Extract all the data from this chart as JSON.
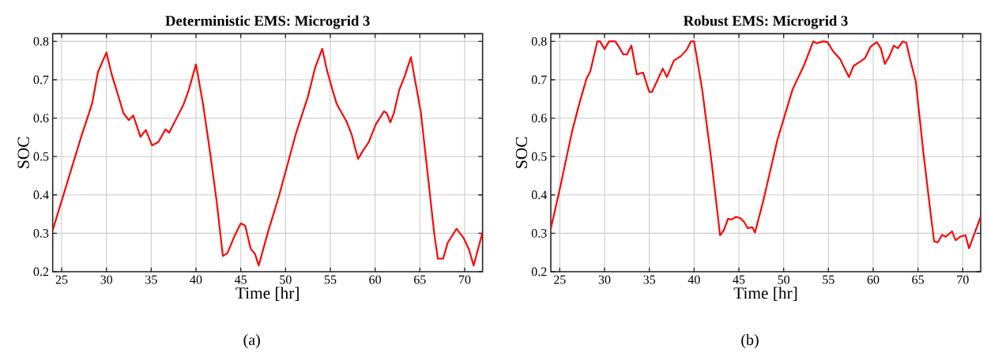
{
  "chart_data": [
    {
      "type": "line",
      "title": "Deterministic EMS: Microgrid 3",
      "xlabel": "Time [hr]",
      "ylabel": "SOC",
      "color": "#ff0000",
      "xlim": [
        24,
        72
      ],
      "ylim": [
        0.2,
        0.82
      ],
      "xticks": [
        25,
        30,
        35,
        40,
        45,
        50,
        55,
        60,
        65,
        70
      ],
      "yticks": [
        0.2,
        0.3,
        0.4,
        0.5,
        0.6,
        0.7,
        0.8
      ],
      "grid": true,
      "annotations": [
        "(a)"
      ],
      "x": [
        24,
        27.15,
        28.4,
        29.05,
        30,
        30.6,
        31.3,
        31.9,
        32.5,
        33.0,
        33.8,
        34.4,
        35.1,
        35.8,
        36.6,
        37.0,
        37.9,
        38.6,
        39.2,
        40.0,
        40.8,
        41.6,
        42.3,
        43.0,
        43.5,
        44.3,
        45.0,
        45.5,
        46.1,
        46.6,
        47.0,
        48.0,
        49.3,
        51.2,
        52.5,
        53.3,
        54.1,
        54.6,
        55.2,
        55.7,
        56.0,
        56.8,
        57.4,
        57.7,
        58.1,
        58.7,
        59.3,
        60.1,
        60.6,
        61.0,
        61.3,
        61.7,
        62.1,
        62.7,
        63.3,
        64.0,
        64.6,
        65.1,
        65.8,
        66.6,
        67.0,
        67.6,
        68.1,
        69.1,
        69.9,
        70.5,
        71.0,
        72.0
      ],
      "values": [
        0.308,
        0.549,
        0.638,
        0.72,
        0.771,
        0.713,
        0.66,
        0.613,
        0.595,
        0.607,
        0.551,
        0.569,
        0.529,
        0.538,
        0.571,
        0.562,
        0.603,
        0.635,
        0.674,
        0.74,
        0.635,
        0.506,
        0.385,
        0.241,
        0.248,
        0.293,
        0.326,
        0.32,
        0.26,
        0.246,
        0.216,
        0.3,
        0.4,
        0.563,
        0.656,
        0.731,
        0.781,
        0.727,
        0.677,
        0.638,
        0.625,
        0.592,
        0.556,
        0.528,
        0.494,
        0.517,
        0.538,
        0.585,
        0.603,
        0.618,
        0.613,
        0.589,
        0.613,
        0.674,
        0.709,
        0.759,
        0.681,
        0.617,
        0.47,
        0.3,
        0.234,
        0.234,
        0.275,
        0.312,
        0.287,
        0.257,
        0.216,
        0.303
      ]
    },
    {
      "type": "line",
      "title": "Robust EMS: Microgrid 3",
      "xlabel": "Time [hr]",
      "ylabel": "SOC",
      "color": "#ff0000",
      "xlim": [
        24,
        72
      ],
      "ylim": [
        0.2,
        0.82
      ],
      "xticks": [
        25,
        30,
        35,
        40,
        45,
        50,
        55,
        60,
        65,
        70
      ],
      "yticks": [
        0.2,
        0.3,
        0.4,
        0.5,
        0.6,
        0.7,
        0.8
      ],
      "grid": true,
      "annotations": [
        "(b)"
      ],
      "x": [
        24.0,
        24.9,
        26.4,
        27.2,
        28.0,
        28.4,
        29.2,
        29.5,
        30.0,
        30.5,
        31.2,
        31.6,
        32.1,
        32.5,
        33.0,
        33.6,
        34.3,
        35.0,
        35.3,
        36.5,
        36.96,
        37.75,
        38.5,
        39.2,
        39.65,
        40.0,
        40.9,
        41.9,
        42.9,
        43.3,
        43.8,
        44.2,
        44.7,
        45.2,
        45.6,
        46.0,
        46.5,
        46.8,
        47.7,
        49.3,
        51.0,
        52.3,
        53.3,
        53.7,
        54.4,
        54.9,
        55.5,
        56.3,
        56.9,
        57.3,
        57.8,
        58.6,
        59.1,
        59.7,
        60.4,
        60.85,
        61.3,
        61.8,
        62.3,
        62.75,
        63.3,
        63.7,
        64.2,
        64.75,
        65.6,
        66.4,
        66.8,
        67.2,
        67.7,
        68.1,
        68.8,
        69.2,
        69.7,
        70.3,
        70.7,
        72.0
      ],
      "values": [
        0.312,
        0.404,
        0.568,
        0.639,
        0.704,
        0.721,
        0.8,
        0.8,
        0.78,
        0.8,
        0.8,
        0.786,
        0.766,
        0.766,
        0.789,
        0.714,
        0.719,
        0.668,
        0.668,
        0.729,
        0.707,
        0.75,
        0.761,
        0.779,
        0.8,
        0.8,
        0.675,
        0.496,
        0.295,
        0.307,
        0.338,
        0.336,
        0.343,
        0.339,
        0.329,
        0.313,
        0.316,
        0.302,
        0.382,
        0.543,
        0.675,
        0.739,
        0.8,
        0.795,
        0.8,
        0.798,
        0.775,
        0.754,
        0.725,
        0.707,
        0.736,
        0.748,
        0.757,
        0.786,
        0.798,
        0.782,
        0.741,
        0.761,
        0.789,
        0.782,
        0.8,
        0.796,
        0.746,
        0.696,
        0.511,
        0.354,
        0.279,
        0.276,
        0.296,
        0.291,
        0.305,
        0.282,
        0.291,
        0.295,
        0.261,
        0.343
      ]
    }
  ]
}
